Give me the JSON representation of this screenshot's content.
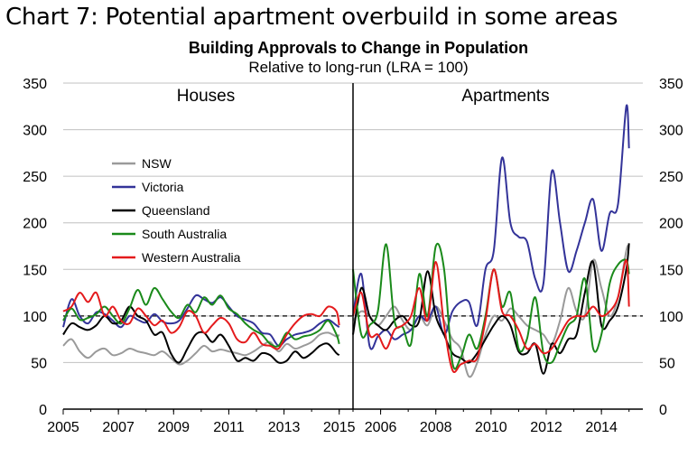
{
  "heading": "Chart 7: Potential apartment overbuild in some areas",
  "chart_data": {
    "type": "line",
    "title": "Building Approvals to Change in Population",
    "subtitle": "Relative to long-run (LRA = 100)",
    "xlabel": "",
    "ylabel": "",
    "ylim": [
      0,
      350
    ],
    "y_ticks": [
      0,
      50,
      100,
      150,
      200,
      250,
      300,
      350
    ],
    "reference_line": 100,
    "grid": true,
    "legend_position": "left (inside Houses panel)",
    "colors": {
      "NSW": "#9a9a9a",
      "Victoria": "#333399",
      "Queensland": "#000000",
      "South Australia": "#1a8a1a",
      "Western Australia": "#e41a1c"
    },
    "panels": [
      {
        "label": "Houses",
        "xlim": [
          2005,
          2015.5
        ],
        "x_ticks": [
          "2005",
          "2007",
          "2009",
          "2011",
          "2013",
          "2015"
        ],
        "series": [
          {
            "name": "NSW",
            "x": [
              2005.0,
              2005.3,
              2005.6,
              2005.9,
              2006.2,
              2006.5,
              2006.8,
              2007.1,
              2007.4,
              2007.7,
              2008.0,
              2008.3,
              2008.6,
              2008.9,
              2009.2,
              2009.5,
              2009.8,
              2010.1,
              2010.4,
              2010.7,
              2011.0,
              2011.3,
              2011.6,
              2011.9,
              2012.2,
              2012.5,
              2012.8,
              2013.1,
              2013.4,
              2013.7,
              2014.0,
              2014.3,
              2014.6,
              2014.9,
              2015.0
            ],
            "y": [
              68,
              75,
              62,
              55,
              62,
              65,
              58,
              60,
              65,
              62,
              60,
              58,
              62,
              55,
              48,
              52,
              60,
              68,
              62,
              64,
              62,
              60,
              58,
              62,
              68,
              72,
              62,
              70,
              65,
              68,
              72,
              80,
              82,
              78,
              80
            ]
          },
          {
            "name": "Victoria",
            "x": [
              2005.0,
              2005.3,
              2005.6,
              2005.9,
              2006.2,
              2006.5,
              2006.8,
              2007.1,
              2007.4,
              2007.7,
              2008.0,
              2008.3,
              2008.6,
              2008.9,
              2009.2,
              2009.5,
              2009.8,
              2010.1,
              2010.4,
              2010.7,
              2011.0,
              2011.3,
              2011.6,
              2011.9,
              2012.2,
              2012.5,
              2012.8,
              2013.1,
              2013.4,
              2013.7,
              2014.0,
              2014.3,
              2014.6,
              2014.9,
              2015.0
            ],
            "y": [
              88,
              118,
              100,
              92,
              104,
              102,
              95,
              88,
              100,
              96,
              93,
              102,
              94,
              92,
              95,
              108,
              122,
              118,
              114,
              120,
              110,
              100,
              96,
              92,
              82,
              80,
              68,
              75,
              80,
              82,
              85,
              92,
              96,
              90,
              88
            ]
          },
          {
            "name": "Queensland",
            "x": [
              2005.0,
              2005.3,
              2005.6,
              2005.9,
              2006.2,
              2006.5,
              2006.8,
              2007.1,
              2007.4,
              2007.7,
              2008.0,
              2008.3,
              2008.6,
              2008.9,
              2009.2,
              2009.5,
              2009.8,
              2010.1,
              2010.4,
              2010.7,
              2011.0,
              2011.3,
              2011.6,
              2011.9,
              2012.2,
              2012.5,
              2012.8,
              2013.1,
              2013.4,
              2013.7,
              2014.0,
              2014.3,
              2014.6,
              2014.9,
              2015.0
            ],
            "y": [
              80,
              92,
              88,
              85,
              90,
              100,
              92,
              95,
              110,
              100,
              95,
              80,
              82,
              60,
              50,
              65,
              80,
              82,
              72,
              80,
              68,
              52,
              55,
              52,
              60,
              58,
              50,
              52,
              62,
              55,
              60,
              68,
              70,
              60,
              58
            ]
          },
          {
            "name": "South Australia",
            "x": [
              2005.0,
              2005.3,
              2005.6,
              2005.9,
              2006.2,
              2006.5,
              2006.8,
              2007.1,
              2007.4,
              2007.7,
              2008.0,
              2008.3,
              2008.6,
              2008.9,
              2009.2,
              2009.5,
              2009.8,
              2010.1,
              2010.4,
              2010.7,
              2011.0,
              2011.3,
              2011.6,
              2011.9,
              2012.2,
              2012.5,
              2012.8,
              2013.1,
              2013.4,
              2013.7,
              2014.0,
              2014.3,
              2014.6,
              2014.9,
              2015.0
            ],
            "y": [
              95,
              108,
              96,
              98,
              102,
              110,
              100,
              92,
              108,
              128,
              112,
              130,
              118,
              105,
              98,
              112,
              104,
              120,
              112,
              122,
              108,
              102,
              92,
              85,
              80,
              70,
              68,
              82,
              75,
              78,
              80,
              85,
              95,
              80,
              70
            ]
          },
          {
            "name": "Western Australia",
            "x": [
              2005.0,
              2005.3,
              2005.6,
              2005.9,
              2006.2,
              2006.5,
              2006.8,
              2007.1,
              2007.4,
              2007.7,
              2008.0,
              2008.3,
              2008.6,
              2008.9,
              2009.2,
              2009.5,
              2009.8,
              2010.1,
              2010.4,
              2010.7,
              2011.0,
              2011.3,
              2011.6,
              2011.9,
              2012.2,
              2012.5,
              2012.8,
              2013.1,
              2013.4,
              2013.7,
              2014.0,
              2014.3,
              2014.6,
              2014.9,
              2015.0
            ],
            "y": [
              105,
              110,
              125,
              115,
              125,
              100,
              110,
              95,
              92,
              108,
              100,
              90,
              95,
              82,
              88,
              105,
              100,
              82,
              90,
              98,
              92,
              75,
              72,
              82,
              70,
              68,
              65,
              80,
              92,
              100,
              102,
              100,
              110,
              105,
              90
            ]
          }
        ]
      },
      {
        "label": "Apartments",
        "xlim": [
          2005,
          2015.5
        ],
        "x_ticks": [
          "2006",
          "2008",
          "2010",
          "2012",
          "2014"
        ],
        "series": [
          {
            "name": "NSW",
            "x": [
              2005.0,
              2005.3,
              2005.6,
              2005.9,
              2006.2,
              2006.5,
              2006.8,
              2007.1,
              2007.4,
              2007.7,
              2008.0,
              2008.3,
              2008.6,
              2008.9,
              2009.2,
              2009.5,
              2009.8,
              2010.1,
              2010.4,
              2010.7,
              2011.0,
              2011.3,
              2011.6,
              2011.9,
              2012.2,
              2012.5,
              2012.8,
              2013.1,
              2013.4,
              2013.7,
              2014.0,
              2014.3,
              2014.6,
              2014.9,
              2015.0
            ],
            "y": [
              95,
              105,
              100,
              90,
              100,
              110,
              95,
              85,
              100,
              90,
              110,
              95,
              75,
              65,
              35,
              50,
              80,
              100,
              95,
              108,
              100,
              90,
              85,
              80,
              70,
              95,
              130,
              105,
              100,
              160,
              130,
              100,
              120,
              170,
              175
            ]
          },
          {
            "name": "Victoria",
            "x": [
              2005.0,
              2005.3,
              2005.6,
              2005.9,
              2006.2,
              2006.5,
              2006.8,
              2007.1,
              2007.4,
              2007.7,
              2008.0,
              2008.3,
              2008.6,
              2008.9,
              2009.2,
              2009.5,
              2009.8,
              2010.1,
              2010.4,
              2010.7,
              2011.0,
              2011.3,
              2011.6,
              2011.9,
              2012.2,
              2012.5,
              2012.8,
              2013.1,
              2013.4,
              2013.7,
              2014.0,
              2014.3,
              2014.6,
              2014.9,
              2015.0
            ],
            "y": [
              100,
              145,
              68,
              78,
              85,
              75,
              80,
              85,
              100,
              95,
              110,
              80,
              105,
              115,
              115,
              90,
              150,
              170,
              270,
              200,
              185,
              180,
              140,
              135,
              255,
              200,
              148,
              170,
              200,
              225,
              170,
              210,
              220,
              325,
              280
            ]
          },
          {
            "name": "Queensland",
            "x": [
              2005.0,
              2005.3,
              2005.6,
              2005.9,
              2006.2,
              2006.5,
              2006.8,
              2007.1,
              2007.4,
              2007.7,
              2008.0,
              2008.3,
              2008.6,
              2008.9,
              2009.2,
              2009.5,
              2009.8,
              2010.1,
              2010.4,
              2010.7,
              2011.0,
              2011.3,
              2011.6,
              2011.9,
              2012.2,
              2012.5,
              2012.8,
              2013.1,
              2013.4,
              2013.7,
              2014.0,
              2014.3,
              2014.6,
              2014.9,
              2015.0
            ],
            "y": [
              80,
              130,
              100,
              90,
              85,
              95,
              100,
              90,
              95,
              148,
              100,
              80,
              60,
              55,
              50,
              60,
              75,
              90,
              100,
              90,
              62,
              60,
              70,
              38,
              70,
              60,
              75,
              80,
              125,
              158,
              90,
              95,
              110,
              150,
              178
            ]
          },
          {
            "name": "South Australia",
            "x": [
              2005.0,
              2005.3,
              2005.6,
              2005.9,
              2006.2,
              2006.5,
              2006.8,
              2007.1,
              2007.4,
              2007.7,
              2008.0,
              2008.3,
              2008.6,
              2008.9,
              2009.2,
              2009.5,
              2009.8,
              2010.1,
              2010.4,
              2010.7,
              2011.0,
              2011.3,
              2011.6,
              2011.9,
              2012.2,
              2012.5,
              2012.8,
              2013.1,
              2013.4,
              2013.7,
              2014.0,
              2014.3,
              2014.6,
              2014.9,
              2015.0
            ],
            "y": [
              150,
              80,
              90,
              105,
              177,
              95,
              88,
              70,
              145,
              100,
              175,
              150,
              50,
              55,
              80,
              65,
              100,
              150,
              110,
              125,
              65,
              75,
              120,
              60,
              50,
              70,
              90,
              100,
              140,
              65,
              80,
              135,
              155,
              160,
              145
            ]
          },
          {
            "name": "Western Australia",
            "x": [
              2005.0,
              2005.3,
              2005.6,
              2005.9,
              2006.2,
              2006.5,
              2006.8,
              2007.1,
              2007.4,
              2007.7,
              2008.0,
              2008.3,
              2008.6,
              2008.9,
              2009.2,
              2009.5,
              2009.8,
              2010.1,
              2010.4,
              2010.7,
              2011.0,
              2011.3,
              2011.6,
              2011.9,
              2012.2,
              2012.5,
              2012.8,
              2013.1,
              2013.4,
              2013.7,
              2014.0,
              2014.3,
              2014.6,
              2014.9,
              2015.0
            ],
            "y": [
              100,
              125,
              80,
              80,
              65,
              85,
              90,
              100,
              130,
              95,
              158,
              90,
              42,
              48,
              52,
              55,
              95,
              150,
              105,
              100,
              85,
              65,
              70,
              60,
              65,
              80,
              95,
              100,
              100,
              110,
              100,
              105,
              120,
              160,
              110
            ]
          }
        ]
      }
    ]
  }
}
